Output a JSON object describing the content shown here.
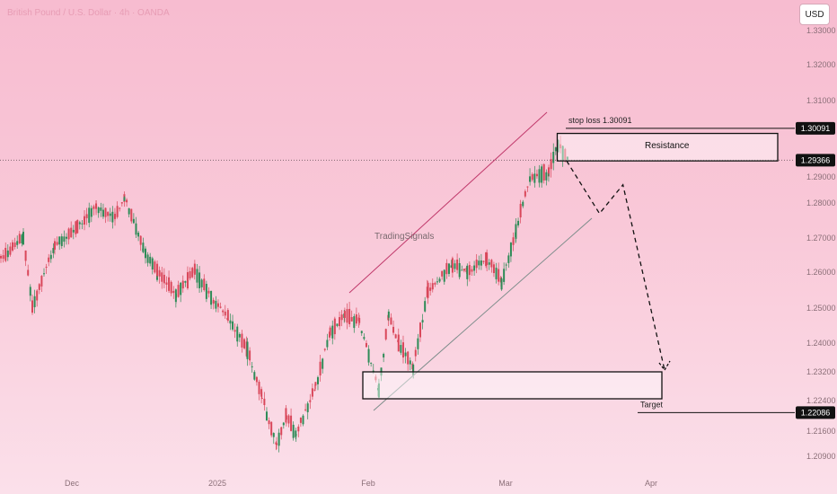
{
  "header": {
    "symbol_title": "British Pound / U.S. Dollar · 4h · OANDA",
    "currency_button": "USD"
  },
  "colors": {
    "up": "#2e8b57",
    "down": "#d9475a",
    "line": "#222222",
    "trend_upper": "#c0396b",
    "trend_lower": "#7c8c8a"
  },
  "chart_data": {
    "type": "candlestick",
    "title": "British Pound / U.S. Dollar · 4h · OANDA",
    "price_axis_ticks": [
      "1.33000",
      "1.32000",
      "1.31000",
      "1.29000",
      "1.28000",
      "1.27000",
      "1.26000",
      "1.25000",
      "1.24000",
      "1.23200",
      "1.22400",
      "1.21600",
      "1.20900"
    ],
    "time_axis_ticks": [
      "Dec",
      "2025",
      "Feb",
      "Mar",
      "Apr"
    ],
    "price_markers": [
      {
        "label": "1.30091",
        "value": 1.30091,
        "style": "dark"
      },
      {
        "label": "1.29366",
        "value": 1.29366,
        "style": "dark"
      },
      {
        "label": "1.22086",
        "value": 1.22086,
        "style": "dark"
      }
    ],
    "annotations": {
      "stop_loss_text": "stop loss  1.30091",
      "resistance_text": "Resistance",
      "target_text": "Target",
      "watermark": "TradingSignals"
    },
    "resistance_zone": {
      "low": 1.2935,
      "high": 1.2995,
      "from": "2025-03-12",
      "to": "2025-04-28"
    },
    "target_zone": {
      "low": 1.2245,
      "high": 1.232,
      "from": "2025-01-31",
      "to": "2025-04-01"
    },
    "projected_path": [
      {
        "date": "2025-03-14",
        "price": 1.2935
      },
      {
        "date": "2025-03-21",
        "price": 1.277
      },
      {
        "date": "2025-03-26",
        "price": 1.287
      },
      {
        "date": "2025-04-04",
        "price": 1.2325
      }
    ],
    "price_path": [
      [
        "2024-11-15",
        1.264
      ],
      [
        "2024-11-20",
        1.27
      ],
      [
        "2024-11-22",
        1.25
      ],
      [
        "2024-11-27",
        1.268
      ],
      [
        "2024-12-02",
        1.273
      ],
      [
        "2024-12-06",
        1.279
      ],
      [
        "2024-12-10",
        1.276
      ],
      [
        "2024-12-12",
        1.282
      ],
      [
        "2024-12-16",
        1.267
      ],
      [
        "2024-12-19",
        1.26
      ],
      [
        "2024-12-23",
        1.254
      ],
      [
        "2024-12-27",
        1.26
      ],
      [
        "2024-12-31",
        1.252
      ],
      [
        "2025-01-03",
        1.247
      ],
      [
        "2025-01-07",
        1.238
      ],
      [
        "2025-01-10",
        1.225
      ],
      [
        "2025-01-13",
        1.212
      ],
      [
        "2025-01-15",
        1.22
      ],
      [
        "2025-01-17",
        1.215
      ],
      [
        "2025-01-21",
        1.228
      ],
      [
        "2025-01-24",
        1.243
      ],
      [
        "2025-01-27",
        1.248
      ],
      [
        "2025-01-30",
        1.246
      ],
      [
        "2025-02-03",
        1.227
      ],
      [
        "2025-02-05",
        1.248
      ],
      [
        "2025-02-07",
        1.24
      ],
      [
        "2025-02-10",
        1.233
      ],
      [
        "2025-02-13",
        1.255
      ],
      [
        "2025-02-18",
        1.262
      ],
      [
        "2025-02-21",
        1.26
      ],
      [
        "2025-02-25",
        1.264
      ],
      [
        "2025-02-28",
        1.257
      ],
      [
        "2025-03-03",
        1.272
      ],
      [
        "2025-03-06",
        1.289
      ],
      [
        "2025-03-10",
        1.291
      ],
      [
        "2025-03-12",
        1.2975
      ],
      [
        "2025-03-14",
        1.2937
      ]
    ]
  }
}
